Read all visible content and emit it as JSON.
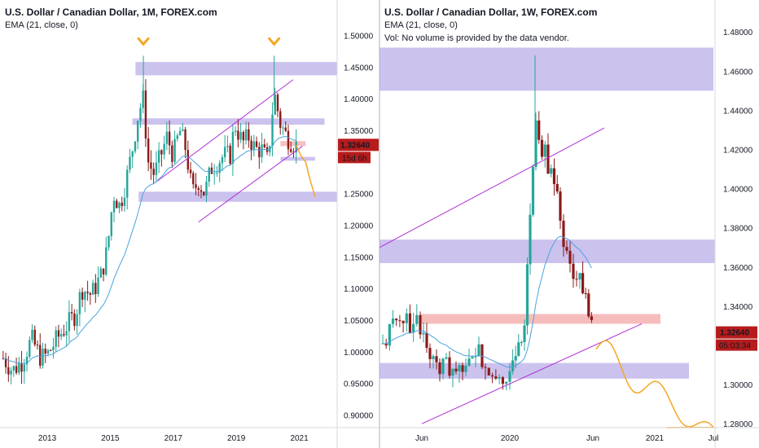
{
  "left": {
    "title": "U.S. Dollar / Canadian Dollar, 1M, FOREX.com",
    "indicator": "EMA (21, close, 0)",
    "price_tag": "1.32640",
    "countdown_tag": "15d 6h",
    "colors": {
      "up": "#26a69a",
      "down": "#8b1a1a",
      "ema": "#4aa3df",
      "zone": "#b9aee8",
      "resistance": "#f4a7a7",
      "channel": "#b030d8",
      "projection": "#f5a623",
      "marker": "#f5a623",
      "tag": "#b71c1c"
    },
    "y_ticks": [
      "1.50000",
      "1.45000",
      "1.40000",
      "1.35000",
      "1.30000",
      "1.25000",
      "1.20000",
      "1.15000",
      "1.10000",
      "1.05000",
      "1.00000",
      "0.95000",
      "0.90000"
    ],
    "x_ticks": [
      "2013",
      "2015",
      "2017",
      "2019",
      "2021"
    ],
    "chart_data": {
      "type": "candlestick",
      "timeframe": "1M",
      "ylim": [
        0.88,
        1.52
      ],
      "xlim": [
        2011.5,
        2022.2
      ],
      "close_path": [
        [
          2011.6,
          0.99
        ],
        [
          2011.9,
          0.97
        ],
        [
          2012.2,
          0.985
        ],
        [
          2012.5,
          1.02
        ],
        [
          2012.8,
          0.99
        ],
        [
          2013.0,
          0.995
        ],
        [
          2013.3,
          1.02
        ],
        [
          2013.6,
          1.04
        ],
        [
          2013.9,
          1.06
        ],
        [
          2014.1,
          1.1
        ],
        [
          2014.4,
          1.09
        ],
        [
          2014.7,
          1.12
        ],
        [
          2014.9,
          1.16
        ],
        [
          2015.1,
          1.25
        ],
        [
          2015.3,
          1.23
        ],
        [
          2015.5,
          1.27
        ],
        [
          2015.7,
          1.32
        ],
        [
          2015.9,
          1.38
        ],
        [
          2016.05,
          1.4
        ],
        [
          2016.2,
          1.3
        ],
        [
          2016.4,
          1.28
        ],
        [
          2016.6,
          1.31
        ],
        [
          2016.8,
          1.34
        ],
        [
          2017.0,
          1.31
        ],
        [
          2017.2,
          1.35
        ],
        [
          2017.4,
          1.32
        ],
        [
          2017.6,
          1.25
        ],
        [
          2017.8,
          1.27
        ],
        [
          2018.0,
          1.25
        ],
        [
          2018.2,
          1.29
        ],
        [
          2018.4,
          1.3
        ],
        [
          2018.6,
          1.31
        ],
        [
          2018.8,
          1.31
        ],
        [
          2018.95,
          1.36
        ],
        [
          2019.2,
          1.33
        ],
        [
          2019.4,
          1.34
        ],
        [
          2019.6,
          1.32
        ],
        [
          2019.8,
          1.32
        ],
        [
          2020.0,
          1.3
        ],
        [
          2020.2,
          1.41
        ],
        [
          2020.4,
          1.36
        ],
        [
          2020.6,
          1.34
        ],
        [
          2020.8,
          1.33
        ],
        [
          2020.9,
          1.3264
        ]
      ],
      "projection": [
        [
          2020.9,
          1.3264
        ],
        [
          2021.05,
          1.31
        ],
        [
          2021.2,
          1.3
        ],
        [
          2021.35,
          1.27
        ],
        [
          2021.5,
          1.245
        ]
      ],
      "zones": [
        [
          2015.8,
          2022.2,
          1.437,
          1.458
        ],
        [
          2015.7,
          2021.8,
          1.359,
          1.369
        ],
        [
          2015.9,
          2022.5,
          1.237,
          1.253
        ],
        [
          2020.4,
          2021.2,
          1.325,
          1.333
        ],
        [
          2020.4,
          2021.5,
          1.302,
          1.308
        ]
      ],
      "channel": [
        [
          [
            2016.5,
            1.27
          ],
          [
            2020.8,
            1.43
          ]
        ],
        [
          [
            2017.8,
            1.205
          ],
          [
            2021.1,
            1.325
          ]
        ]
      ],
      "markers": [
        2016.05,
        2020.2
      ]
    }
  },
  "right": {
    "title": "U.S. Dollar / Canadian Dollar, 1W, FOREX.com",
    "indicator": "EMA (21, close, 0)",
    "vol_note": "Vol: No volume is provided by the data vendor.",
    "price_tag": "1.32640",
    "countdown_tag": "05:03:34",
    "y_ticks": [
      "1.48000",
      "1.46000",
      "1.44000",
      "1.42000",
      "1.40000",
      "1.38000",
      "1.36000",
      "1.34000",
      "1.32640",
      "1.30000",
      "1.28000"
    ],
    "x_ticks": [
      "Jun",
      "2020",
      "Jun",
      "2021",
      "Jul"
    ],
    "chart_data": {
      "type": "candlestick",
      "timeframe": "1W",
      "ylim": [
        1.278,
        1.488
      ],
      "close_path": [
        [
          0.0,
          1.33
        ],
        [
          0.05,
          1.335
        ],
        [
          0.09,
          1.33
        ],
        [
          0.12,
          1.325
        ],
        [
          0.16,
          1.33
        ],
        [
          0.2,
          1.32
        ],
        [
          0.24,
          1.315
        ],
        [
          0.28,
          1.305
        ],
        [
          0.32,
          1.32
        ],
        [
          0.36,
          1.31
        ],
        [
          0.4,
          1.32
        ],
        [
          0.44,
          1.31
        ],
        [
          0.48,
          1.32
        ],
        [
          0.52,
          1.305
        ],
        [
          0.56,
          1.31
        ],
        [
          0.6,
          1.315
        ],
        [
          0.64,
          1.315
        ],
        [
          0.68,
          1.322
        ],
        [
          0.72,
          1.32
        ],
        [
          0.76,
          1.31
        ],
        [
          0.8,
          1.33
        ],
        [
          0.84,
          1.36
        ],
        [
          0.88,
          1.41
        ],
        [
          0.92,
          1.42
        ],
        [
          0.96,
          1.39
        ]
      ],
      "zones": [
        [
          0,
          1,
          1.45,
          1.472
        ],
        [
          0,
          1,
          1.362,
          1.374
        ],
        [
          0.11,
          0.73,
          1.331,
          1.336
        ],
        [
          0.11,
          0.82,
          1.303,
          1.311
        ]
      ],
      "resistance_band": [
        0.11,
        0.73,
        1.331,
        1.336
      ]
    }
  }
}
